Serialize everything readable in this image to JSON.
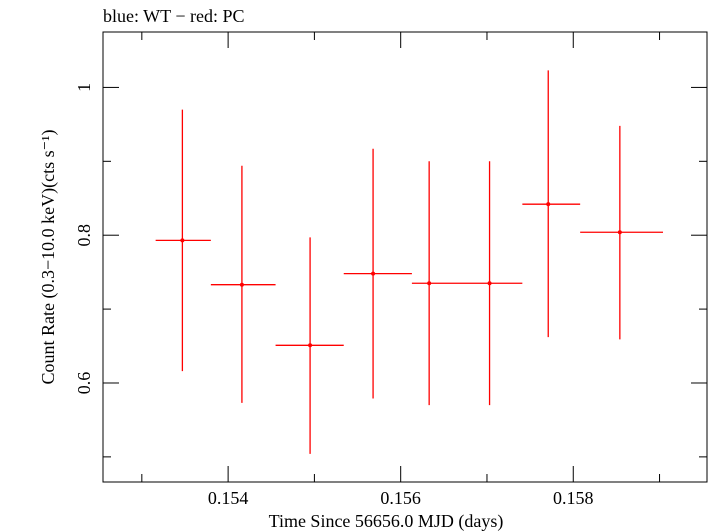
{
  "chart_data": {
    "type": "scatter",
    "title": "blue: WT − red: PC",
    "xlabel": "Time Since 56656.0 MJD (days)",
    "ylabel": "Count Rate (0.3−10.0 keV)(cts s⁻¹)",
    "xlim": [
      0.15255,
      0.15955
    ],
    "ylim": [
      0.466,
      1.075
    ],
    "x_ticks": [
      0.154,
      0.156,
      0.158
    ],
    "x_tick_labels": [
      "0.154",
      "0.156",
      "0.158"
    ],
    "y_ticks": [
      0.6,
      0.8,
      1.0
    ],
    "y_tick_labels": [
      "0.6",
      "0.8",
      "1"
    ],
    "grid": false,
    "series": [
      {
        "color": "#ff0000",
        "points": [
          {
            "x": 0.15347,
            "y": 0.793,
            "xerr": [
              0.15316,
              0.1538
            ],
            "yerr": [
              0.616,
              0.97
            ]
          },
          {
            "x": 0.15416,
            "y": 0.733,
            "xerr": [
              0.1538,
              0.15455
            ],
            "yerr": [
              0.573,
              0.894
            ]
          },
          {
            "x": 0.15495,
            "y": 0.651,
            "xerr": [
              0.15455,
              0.15534
            ],
            "yerr": [
              0.504,
              0.797
            ]
          },
          {
            "x": 0.15568,
            "y": 0.748,
            "xerr": [
              0.15534,
              0.15613
            ],
            "yerr": [
              0.579,
              0.917
            ]
          },
          {
            "x": 0.15633,
            "y": 0.735,
            "xerr": [
              0.15613,
              0.15667
            ],
            "yerr": [
              0.57,
              0.9
            ]
          },
          {
            "x": 0.15703,
            "y": 0.735,
            "xerr": [
              0.15667,
              0.15741
            ],
            "yerr": [
              0.57,
              0.9
            ]
          },
          {
            "x": 0.15771,
            "y": 0.842,
            "xerr": [
              0.15741,
              0.15808
            ],
            "yerr": [
              0.662,
              1.023
            ]
          },
          {
            "x": 0.15854,
            "y": 0.804,
            "xerr": [
              0.15808,
              0.15904
            ],
            "yerr": [
              0.659,
              0.948
            ]
          }
        ]
      }
    ]
  }
}
